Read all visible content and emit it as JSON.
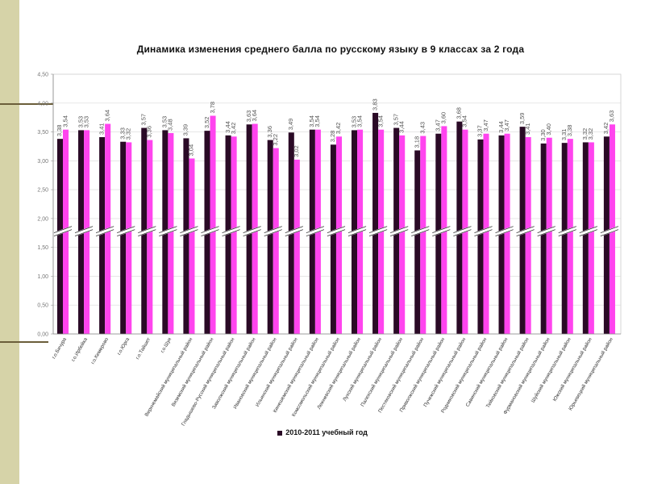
{
  "chart_data": {
    "type": "bar",
    "title": "Динамика изменения среднего балла по русскому языку в 9 классах за 2 года",
    "ylim": [
      0,
      4.5
    ],
    "y_ticks": [
      "0,00",
      "0,50",
      "1,00",
      "1,50",
      "2,00",
      "2,50",
      "3,00",
      "3,50",
      "4,00",
      "4,50"
    ],
    "axis_break": true,
    "categories": [
      "г.о.Бичура",
      "г.о.Ирбейка",
      "г.о.Кемерово",
      "г.о.Юрга",
      "г.о.Тайшет",
      "г.о.Шуя",
      "Верхнемайский муниципальный район",
      "Вяземский муниципальный район",
      "Гладышево-Русский муниципальный район",
      "Заволжский муниципальный район",
      "Ивановский муниципальный район",
      "Ильинский муниципальный район",
      "Кинешемский муниципальный район",
      "Комсомольский муниципальный район",
      "Лежневский муниципальный район",
      "Лухский муниципальный район",
      "Палехский муниципальный район",
      "Пестяковский муниципальный район",
      "Приволжский муниципальный район",
      "Пучежский муниципальный район",
      "Родниковский муниципальный район",
      "Савинский муниципальный район",
      "Тейковский муниципальный район",
      "Фурмановский муниципальный район",
      "Шуйский муниципальный район",
      "Южский муниципальный район",
      "Юрьевецкий муниципальный район"
    ],
    "series": [
      {
        "name": "2010-2011 учебный год",
        "color": "#2a0a26",
        "values": [
          3.38,
          3.53,
          3.41,
          3.33,
          3.57,
          3.53,
          3.39,
          3.52,
          3.44,
          3.63,
          3.36,
          3.49,
          3.54,
          3.28,
          3.53,
          3.83,
          3.57,
          3.18,
          3.47,
          3.68,
          3.37,
          3.44,
          3.59,
          3.3,
          3.31,
          3.32,
          3.42
        ]
      },
      {
        "name": "",
        "color": "#ff44ee",
        "values": [
          3.54,
          3.53,
          3.64,
          3.32,
          3.36,
          3.48,
          3.04,
          3.78,
          3.42,
          3.64,
          3.22,
          3.02,
          3.54,
          3.42,
          3.54,
          3.54,
          3.44,
          3.43,
          3.6,
          3.54,
          3.47,
          3.47,
          3.41,
          3.4,
          3.38,
          3.32,
          3.63
        ]
      }
    ],
    "legend_placement": "bottom",
    "legend_label": "2010-2011 учебный год"
  }
}
